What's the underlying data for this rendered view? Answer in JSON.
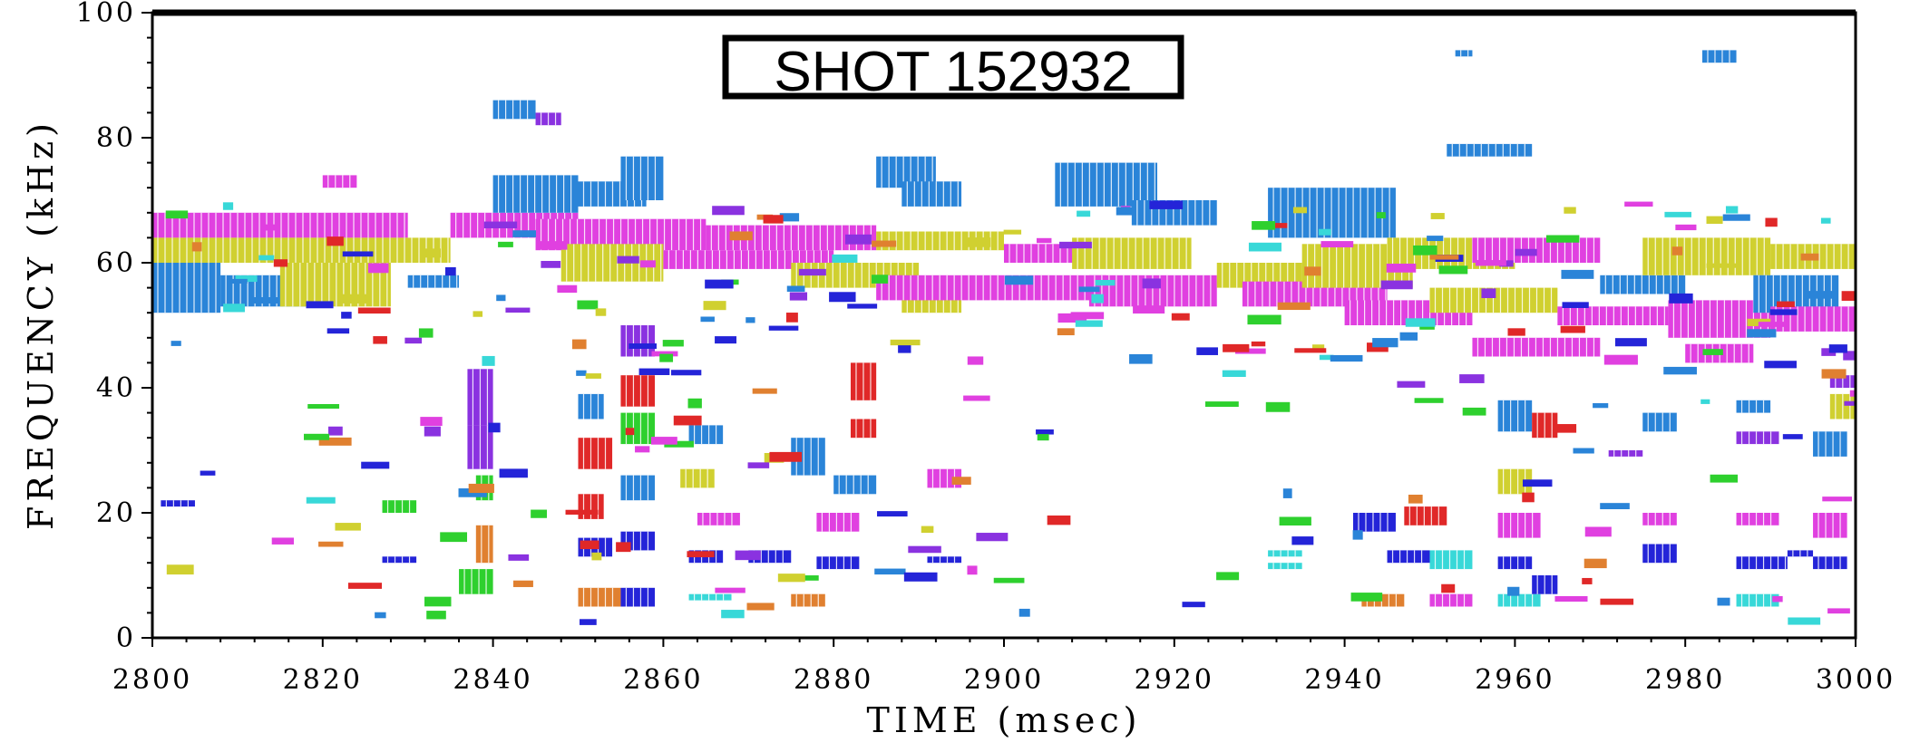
{
  "chart_data": {
    "type": "heatmap",
    "title": "SHOT 152932",
    "xlabel": "TIME  (msec)",
    "ylabel": "FREQUENCY (kHz)",
    "xlim": [
      2800,
      3000
    ],
    "ylim": [
      0,
      100
    ],
    "x_ticks": [
      "2800",
      "2820",
      "2840",
      "2860",
      "2880",
      "2900",
      "2920",
      "2940",
      "2960",
      "2980",
      "3000"
    ],
    "y_ticks": [
      "0",
      "20",
      "40",
      "60",
      "80",
      "100"
    ],
    "grid": false,
    "palette": {
      "magenta": "#e040e0",
      "yellow": "#d0d030",
      "blue": "#2a84d8",
      "purple": "#8a32e0",
      "red": "#e02828",
      "green": "#2ed02e",
      "orange": "#e08030",
      "navy": "#2424d8",
      "cyan": "#38d8d8"
    },
    "patches": [
      {
        "t0": 2800,
        "t1": 2808,
        "f0": 52,
        "f1": 62,
        "c": "blue"
      },
      {
        "t0": 2808,
        "t1": 2818,
        "f0": 53,
        "f1": 58,
        "c": "blue"
      },
      {
        "t0": 2800,
        "t1": 2830,
        "f0": 64,
        "f1": 68,
        "c": "magenta"
      },
      {
        "t0": 2800,
        "t1": 2835,
        "f0": 60,
        "f1": 64,
        "c": "yellow"
      },
      {
        "t0": 2815,
        "t1": 2828,
        "f0": 53,
        "f1": 60,
        "c": "yellow"
      },
      {
        "t0": 2820,
        "t1": 2824,
        "f0": 72,
        "f1": 74,
        "c": "magenta"
      },
      {
        "t0": 2830,
        "t1": 2836,
        "f0": 56,
        "f1": 58,
        "c": "blue"
      },
      {
        "t0": 2835,
        "t1": 2850,
        "f0": 64,
        "f1": 68,
        "c": "magenta"
      },
      {
        "t0": 2840,
        "t1": 2850,
        "f0": 68,
        "f1": 74,
        "c": "blue"
      },
      {
        "t0": 2840,
        "t1": 2845,
        "f0": 83,
        "f1": 86,
        "c": "blue"
      },
      {
        "t0": 2845,
        "t1": 2848,
        "f0": 82,
        "f1": 84,
        "c": "purple"
      },
      {
        "t0": 2850,
        "t1": 2858,
        "f0": 69,
        "f1": 73,
        "c": "blue"
      },
      {
        "t0": 2855,
        "t1": 2860,
        "f0": 70,
        "f1": 77,
        "c": "blue"
      },
      {
        "t0": 2845,
        "t1": 2865,
        "f0": 62,
        "f1": 67,
        "c": "magenta"
      },
      {
        "t0": 2848,
        "t1": 2860,
        "f0": 57,
        "f1": 63,
        "c": "yellow"
      },
      {
        "t0": 2860,
        "t1": 2880,
        "f0": 59,
        "f1": 62,
        "c": "magenta"
      },
      {
        "t0": 2865,
        "t1": 2885,
        "f0": 62,
        "f1": 66,
        "c": "magenta"
      },
      {
        "t0": 2875,
        "t1": 2890,
        "f0": 56,
        "f1": 60,
        "c": "yellow"
      },
      {
        "t0": 2885,
        "t1": 2892,
        "f0": 72,
        "f1": 77,
        "c": "blue"
      },
      {
        "t0": 2888,
        "t1": 2895,
        "f0": 69,
        "f1": 73,
        "c": "blue"
      },
      {
        "t0": 2885,
        "t1": 2900,
        "f0": 62,
        "f1": 65,
        "c": "yellow"
      },
      {
        "t0": 2888,
        "t1": 2895,
        "f0": 52,
        "f1": 56,
        "c": "yellow"
      },
      {
        "t0": 2885,
        "t1": 2912,
        "f0": 54,
        "f1": 58,
        "c": "magenta"
      },
      {
        "t0": 2900,
        "t1": 2920,
        "f0": 60,
        "f1": 63,
        "c": "magenta"
      },
      {
        "t0": 2906,
        "t1": 2918,
        "f0": 69,
        "f1": 76,
        "c": "blue"
      },
      {
        "t0": 2908,
        "t1": 2922,
        "f0": 59,
        "f1": 64,
        "c": "yellow"
      },
      {
        "t0": 2910,
        "t1": 2925,
        "f0": 53,
        "f1": 58,
        "c": "magenta"
      },
      {
        "t0": 2915,
        "t1": 2925,
        "f0": 66,
        "f1": 70,
        "c": "blue"
      },
      {
        "t0": 2925,
        "t1": 2935,
        "f0": 56,
        "f1": 60,
        "c": "yellow"
      },
      {
        "t0": 2928,
        "t1": 2945,
        "f0": 53,
        "f1": 57,
        "c": "magenta"
      },
      {
        "t0": 2931,
        "t1": 2946,
        "f0": 64,
        "f1": 72,
        "c": "blue"
      },
      {
        "t0": 2935,
        "t1": 2948,
        "f0": 56,
        "f1": 63,
        "c": "yellow"
      },
      {
        "t0": 2940,
        "t1": 2955,
        "f0": 50,
        "f1": 54,
        "c": "magenta"
      },
      {
        "t0": 2945,
        "t1": 2960,
        "f0": 59,
        "f1": 64,
        "c": "yellow"
      },
      {
        "t0": 2950,
        "t1": 2965,
        "f0": 52,
        "f1": 56,
        "c": "yellow"
      },
      {
        "t0": 2952,
        "t1": 2962,
        "f0": 77,
        "f1": 79,
        "c": "blue"
      },
      {
        "t0": 2955,
        "t1": 2970,
        "f0": 60,
        "f1": 64,
        "c": "magenta"
      },
      {
        "t0": 2955,
        "t1": 2970,
        "f0": 45,
        "f1": 48,
        "c": "magenta"
      },
      {
        "t0": 2965,
        "t1": 2978,
        "f0": 50,
        "f1": 53,
        "c": "magenta"
      },
      {
        "t0": 2970,
        "t1": 2980,
        "f0": 55,
        "f1": 58,
        "c": "blue"
      },
      {
        "t0": 2975,
        "t1": 2990,
        "f0": 58,
        "f1": 64,
        "c": "yellow"
      },
      {
        "t0": 2978,
        "t1": 2990,
        "f0": 48,
        "f1": 54,
        "c": "magenta"
      },
      {
        "t0": 2980,
        "t1": 2988,
        "f0": 44,
        "f1": 47,
        "c": "magenta"
      },
      {
        "t0": 2988,
        "t1": 2998,
        "f0": 52,
        "f1": 58,
        "c": "blue"
      },
      {
        "t0": 2990,
        "t1": 3000,
        "f0": 59,
        "f1": 63,
        "c": "yellow"
      },
      {
        "t0": 2990,
        "t1": 3000,
        "f0": 49,
        "f1": 53,
        "c": "magenta"
      },
      {
        "t0": 2982,
        "t1": 2986,
        "f0": 92,
        "f1": 94,
        "c": "blue"
      },
      {
        "t0": 2953,
        "t1": 2955,
        "f0": 93,
        "f1": 94,
        "c": "blue"
      },
      {
        "t0": 2801,
        "t1": 2805,
        "f0": 21,
        "f1": 22,
        "c": "navy"
      },
      {
        "t0": 2827,
        "t1": 2831,
        "f0": 20,
        "f1": 22,
        "c": "green"
      },
      {
        "t0": 2827,
        "t1": 2831,
        "f0": 12,
        "f1": 13,
        "c": "navy"
      },
      {
        "t0": 2837,
        "t1": 2840,
        "f0": 34,
        "f1": 43,
        "c": "purple"
      },
      {
        "t0": 2837,
        "t1": 2840,
        "f0": 27,
        "f1": 34,
        "c": "purple"
      },
      {
        "t0": 2838,
        "t1": 2840,
        "f0": 22,
        "f1": 26,
        "c": "green"
      },
      {
        "t0": 2838,
        "t1": 2840,
        "f0": 12,
        "f1": 18,
        "c": "orange"
      },
      {
        "t0": 2836,
        "t1": 2840,
        "f0": 7,
        "f1": 11,
        "c": "green"
      },
      {
        "t0": 2850,
        "t1": 2853,
        "f0": 35,
        "f1": 39,
        "c": "blue"
      },
      {
        "t0": 2850,
        "t1": 2854,
        "f0": 27,
        "f1": 32,
        "c": "red"
      },
      {
        "t0": 2850,
        "t1": 2853,
        "f0": 19,
        "f1": 23,
        "c": "red"
      },
      {
        "t0": 2850,
        "t1": 2854,
        "f0": 13,
        "f1": 16,
        "c": "navy"
      },
      {
        "t0": 2850,
        "t1": 2855,
        "f0": 5,
        "f1": 8,
        "c": "orange"
      },
      {
        "t0": 2855,
        "t1": 2859,
        "f0": 37,
        "f1": 42,
        "c": "red"
      },
      {
        "t0": 2855,
        "t1": 2859,
        "f0": 31,
        "f1": 36,
        "c": "green"
      },
      {
        "t0": 2855,
        "t1": 2859,
        "f0": 22,
        "f1": 26,
        "c": "blue"
      },
      {
        "t0": 2855,
        "t1": 2859,
        "f0": 14,
        "f1": 17,
        "c": "navy"
      },
      {
        "t0": 2855,
        "t1": 2859,
        "f0": 5,
        "f1": 8,
        "c": "navy"
      },
      {
        "t0": 2855,
        "t1": 2859,
        "f0": 45,
        "f1": 50,
        "c": "purple"
      },
      {
        "t0": 2863,
        "t1": 2867,
        "f0": 31,
        "f1": 34,
        "c": "blue"
      },
      {
        "t0": 2862,
        "t1": 2866,
        "f0": 24,
        "f1": 27,
        "c": "yellow"
      },
      {
        "t0": 2864,
        "t1": 2869,
        "f0": 18,
        "f1": 20,
        "c": "magenta"
      },
      {
        "t0": 2863,
        "t1": 2867,
        "f0": 12,
        "f1": 14,
        "c": "navy"
      },
      {
        "t0": 2863,
        "t1": 2868,
        "f0": 6,
        "f1": 7,
        "c": "cyan"
      },
      {
        "t0": 2870,
        "t1": 2875,
        "f0": 12,
        "f1": 14,
        "c": "navy"
      },
      {
        "t0": 2875,
        "t1": 2879,
        "f0": 26,
        "f1": 32,
        "c": "blue"
      },
      {
        "t0": 2878,
        "t1": 2883,
        "f0": 17,
        "f1": 20,
        "c": "magenta"
      },
      {
        "t0": 2878,
        "t1": 2883,
        "f0": 11,
        "f1": 13,
        "c": "navy"
      },
      {
        "t0": 2880,
        "t1": 2885,
        "f0": 23,
        "f1": 26,
        "c": "blue"
      },
      {
        "t0": 2882,
        "t1": 2885,
        "f0": 32,
        "f1": 35,
        "c": "red"
      },
      {
        "t0": 2882,
        "t1": 2885,
        "f0": 38,
        "f1": 44,
        "c": "red"
      },
      {
        "t0": 2875,
        "t1": 2879,
        "f0": 5,
        "f1": 7,
        "c": "orange"
      },
      {
        "t0": 2891,
        "t1": 2895,
        "f0": 12,
        "f1": 13,
        "c": "navy"
      },
      {
        "t0": 2891,
        "t1": 2895,
        "f0": 24,
        "f1": 27,
        "c": "magenta"
      },
      {
        "t0": 2931,
        "t1": 2935,
        "f0": 13,
        "f1": 14,
        "c": "cyan"
      },
      {
        "t0": 2931,
        "t1": 2935,
        "f0": 11,
        "f1": 12,
        "c": "cyan"
      },
      {
        "t0": 2941,
        "t1": 2946,
        "f0": 17,
        "f1": 20,
        "c": "navy"
      },
      {
        "t0": 2942,
        "t1": 2947,
        "f0": 5,
        "f1": 7,
        "c": "orange"
      },
      {
        "t0": 2947,
        "t1": 2952,
        "f0": 18,
        "f1": 21,
        "c": "red"
      },
      {
        "t0": 2945,
        "t1": 2950,
        "f0": 12,
        "f1": 14,
        "c": "navy"
      },
      {
        "t0": 2950,
        "t1": 2955,
        "f0": 11,
        "f1": 14,
        "c": "cyan"
      },
      {
        "t0": 2950,
        "t1": 2955,
        "f0": 5,
        "f1": 7,
        "c": "magenta"
      },
      {
        "t0": 2958,
        "t1": 2962,
        "f0": 33,
        "f1": 38,
        "c": "blue"
      },
      {
        "t0": 2958,
        "t1": 2962,
        "f0": 23,
        "f1": 27,
        "c": "yellow"
      },
      {
        "t0": 2958,
        "t1": 2963,
        "f0": 16,
        "f1": 20,
        "c": "magenta"
      },
      {
        "t0": 2958,
        "t1": 2962,
        "f0": 11,
        "f1": 13,
        "c": "navy"
      },
      {
        "t0": 2958,
        "t1": 2963,
        "f0": 5,
        "f1": 7,
        "c": "cyan"
      },
      {
        "t0": 2962,
        "t1": 2965,
        "f0": 32,
        "f1": 36,
        "c": "red"
      },
      {
        "t0": 2962,
        "t1": 2965,
        "f0": 7,
        "f1": 10,
        "c": "navy"
      },
      {
        "t0": 2975,
        "t1": 2979,
        "f0": 18,
        "f1": 20,
        "c": "magenta"
      },
      {
        "t0": 2975,
        "t1": 2979,
        "f0": 12,
        "f1": 15,
        "c": "navy"
      },
      {
        "t0": 2975,
        "t1": 2979,
        "f0": 33,
        "f1": 36,
        "c": "blue"
      },
      {
        "t0": 2971,
        "t1": 2975,
        "f0": 29,
        "f1": 30,
        "c": "purple"
      },
      {
        "t0": 2986,
        "t1": 2991,
        "f0": 31,
        "f1": 33,
        "c": "purple"
      },
      {
        "t0": 2986,
        "t1": 2991,
        "f0": 18,
        "f1": 20,
        "c": "magenta"
      },
      {
        "t0": 2986,
        "t1": 2992,
        "f0": 11,
        "f1": 13,
        "c": "navy"
      },
      {
        "t0": 2986,
        "t1": 2991,
        "f0": 5,
        "f1": 7,
        "c": "cyan"
      },
      {
        "t0": 2986,
        "t1": 2990,
        "f0": 36,
        "f1": 38,
        "c": "blue"
      },
      {
        "t0": 2992,
        "t1": 2995,
        "f0": 13,
        "f1": 14,
        "c": "navy"
      },
      {
        "t0": 2995,
        "t1": 2999,
        "f0": 16,
        "f1": 20,
        "c": "magenta"
      },
      {
        "t0": 2995,
        "t1": 2999,
        "f0": 11,
        "f1": 13,
        "c": "navy"
      },
      {
        "t0": 2995,
        "t1": 2999,
        "f0": 29,
        "f1": 33,
        "c": "blue"
      },
      {
        "t0": 2997,
        "t1": 3000,
        "f0": 35,
        "f1": 39,
        "c": "yellow"
      },
      {
        "t0": 2997,
        "t1": 3000,
        "f0": 40,
        "f1": 42,
        "c": "purple"
      }
    ]
  }
}
